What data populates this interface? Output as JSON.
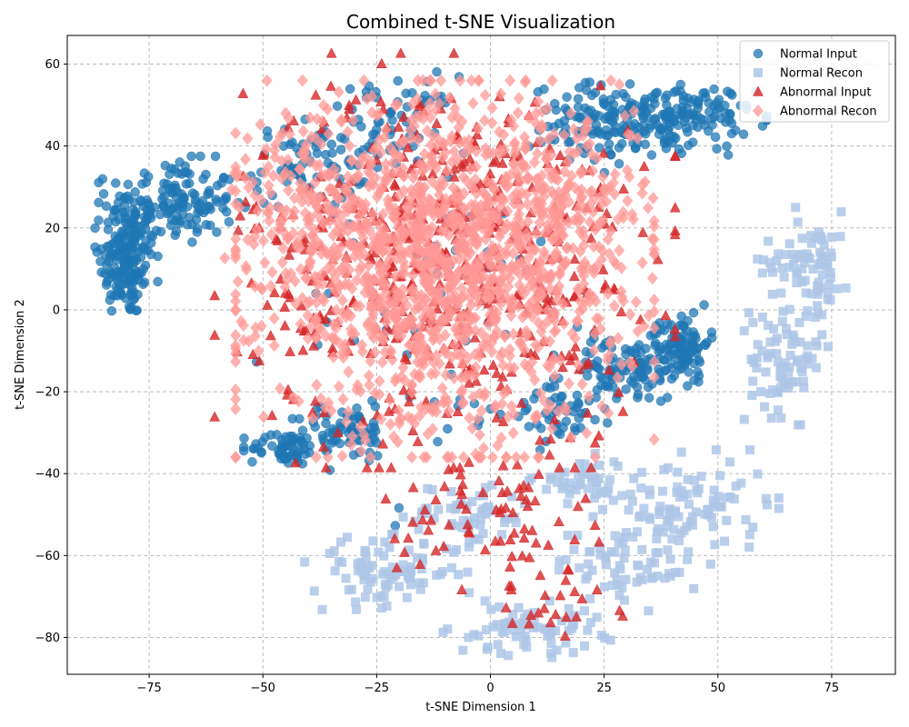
{
  "chart_data": {
    "type": "scatter",
    "title": "Combined t-SNE Visualization",
    "xlabel": "t-SNE Dimension 1",
    "ylabel": "t-SNE Dimension 2",
    "xlim": [
      -93,
      89
    ],
    "ylim": [
      -89,
      67
    ],
    "xticks": [
      -75,
      -50,
      -25,
      0,
      25,
      50,
      75
    ],
    "yticks": [
      -80,
      -60,
      -40,
      -20,
      0,
      20,
      40,
      60
    ],
    "xtick_labels": [
      "−75",
      "−50",
      "−25",
      "0",
      "25",
      "50",
      "75"
    ],
    "ytick_labels": [
      "−80",
      "−60",
      "−40",
      "−20",
      "0",
      "20",
      "40",
      "60"
    ],
    "grid": true,
    "legend_position": "top-right",
    "series": [
      {
        "name": "Normal Input",
        "marker": "circle",
        "color": "#1f77b4",
        "clusters": [
          {
            "center": [
              -80,
              12
            ],
            "spread": [
              3,
              7
            ],
            "n": 160
          },
          {
            "center": [
              -70,
              26
            ],
            "spread": [
              7,
              5
            ],
            "n": 160
          },
          {
            "center": [
              -40,
              35
            ],
            "spread": [
              6,
              5
            ],
            "n": 70
          },
          {
            "center": [
              -22,
              45
            ],
            "spread": [
              7,
              6
            ],
            "n": 70
          },
          {
            "center": [
              25,
              45
            ],
            "spread": [
              8,
              5
            ],
            "n": 100
          },
          {
            "center": [
              40,
              47
            ],
            "spread": [
              9,
              4
            ],
            "n": 160
          },
          {
            "center": [
              30,
              -15
            ],
            "spread": [
              7,
              4
            ],
            "n": 110
          },
          {
            "center": [
              42,
              -8
            ],
            "spread": [
              3,
              4
            ],
            "n": 90
          },
          {
            "center": [
              -45,
              -34
            ],
            "spread": [
              4,
              2
            ],
            "n": 60
          },
          {
            "center": [
              -32,
              -30
            ],
            "spread": [
              5,
              3
            ],
            "n": 60
          },
          {
            "center": [
              16,
              -25
            ],
            "spread": [
              6,
              3
            ],
            "n": 40
          },
          {
            "center": [
              -10,
              -10
            ],
            "spread": [
              18,
              20
            ],
            "n": 60
          }
        ]
      },
      {
        "name": "Normal Recon",
        "marker": "square",
        "color": "#aec7e8",
        "clusters": [
          {
            "center": [
              70,
              12
            ],
            "spread": [
              5,
              6
            ],
            "n": 80
          },
          {
            "center": [
              65,
              -12
            ],
            "spread": [
              4,
              7
            ],
            "n": 80
          },
          {
            "center": [
              -23,
              -64
            ],
            "spread": [
              8,
              4
            ],
            "n": 90
          },
          {
            "center": [
              -5,
              -50
            ],
            "spread": [
              7,
              4
            ],
            "n": 60
          },
          {
            "center": [
              20,
              -42
            ],
            "spread": [
              5,
              3
            ],
            "n": 50
          },
          {
            "center": [
              45,
              -48
            ],
            "spread": [
              8,
              6
            ],
            "n": 90
          },
          {
            "center": [
              30,
              -62
            ],
            "spread": [
              8,
              5
            ],
            "n": 70
          },
          {
            "center": [
              8,
              -78
            ],
            "spread": [
              8,
              3
            ],
            "n": 70
          }
        ]
      },
      {
        "name": "Abnormal Input",
        "marker": "triangle",
        "color": "#d62728",
        "clusters": [
          {
            "center": [
              -10,
              12
            ],
            "spread": [
              22,
              22
            ],
            "n": 520
          },
          {
            "center": [
              0,
              -50
            ],
            "spread": [
              10,
              8
            ],
            "n": 70
          },
          {
            "center": [
              13,
              -70
            ],
            "spread": [
              8,
              6
            ],
            "n": 25
          }
        ]
      },
      {
        "name": "Abnormal Recon",
        "marker": "diamond",
        "color": "#ff9896",
        "clusters": [
          {
            "center": [
              -10,
              10
            ],
            "spread": [
              20,
              20
            ],
            "n": 1400
          },
          {
            "center": [
              -40,
              25
            ],
            "spread": [
              8,
              10
            ],
            "n": 120
          },
          {
            "center": [
              15,
              25
            ],
            "spread": [
              8,
              10
            ],
            "n": 120
          }
        ]
      }
    ]
  }
}
